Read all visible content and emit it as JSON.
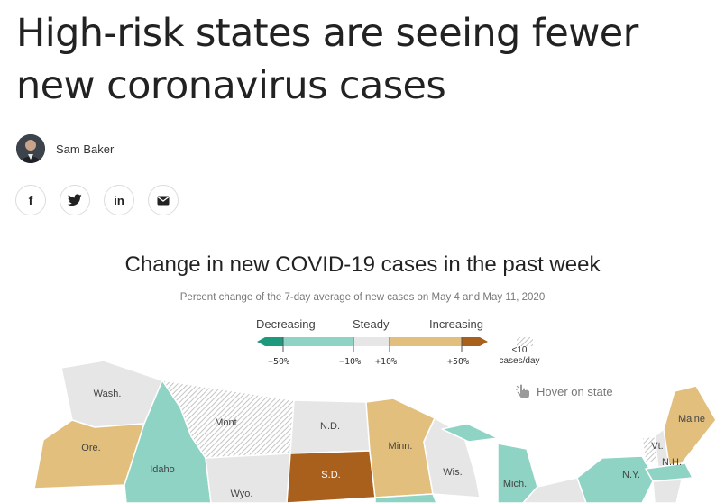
{
  "article": {
    "headline_line1": "High-risk states are seeing fewer",
    "headline_line2": "new coronavirus cases",
    "author": "Sam Baker"
  },
  "share": [
    "facebook-icon",
    "twitter-icon",
    "linkedin-icon",
    "email-icon"
  ],
  "share_glyphs": {
    "facebook": "f",
    "linkedin": "in"
  },
  "chart": {
    "title": "Change in new COVID-19 cases in the past week",
    "subtitle": "Percent change of the 7-day average of new cases on May 4 and May 11, 2020",
    "legend": {
      "decreasing": "Decreasing",
      "steady": "Steady",
      "increasing": "Increasing",
      "ticks": [
        "−50%",
        "−10%",
        "+10%",
        "+50%"
      ],
      "small_label_1": "<10",
      "small_label_2": "cases/day"
    },
    "hover_hint": "Hover on state",
    "colors": {
      "strong_decrease": "#1d9a7d",
      "decrease": "#8ed3c4",
      "steady": "#e6e6e6",
      "increase": "#e2bf7c",
      "strong_increase": "#a8601c",
      "few_cases": "hatched"
    }
  },
  "chart_data": {
    "type": "map",
    "states": [
      {
        "label": "Wash.",
        "category": "steady"
      },
      {
        "label": "Ore.",
        "category": "increasing"
      },
      {
        "label": "Idaho",
        "category": "decreasing"
      },
      {
        "label": "Mont.",
        "category": "fewer than 10 cases/day"
      },
      {
        "label": "Wyo.",
        "category": "steady"
      },
      {
        "label": "N.D.",
        "category": "steady"
      },
      {
        "label": "S.D.",
        "category": "strong increase"
      },
      {
        "label": "Minn.",
        "category": "increasing"
      },
      {
        "label": "Wis.",
        "category": "steady"
      },
      {
        "label": "Mich.",
        "category": "decreasing"
      },
      {
        "label": "N.Y.",
        "category": "decreasing"
      },
      {
        "label": "Vt.",
        "category": "fewer than 10 cases/day"
      },
      {
        "label": "N.H.",
        "category": "steady"
      },
      {
        "label": "Maine",
        "category": "increasing"
      }
    ]
  }
}
